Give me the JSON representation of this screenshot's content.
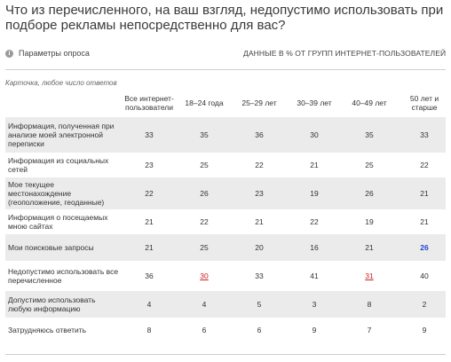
{
  "title": "Что из перечисленного, на ваш взгляд, недопустимо использовать при подборе рекламы непосредственно для вас?",
  "params_label": "Параметры опроса",
  "units_label": "ДАННЫЕ В % ОТ ГРУПП ИНТЕРНЕТ-ПОЛЬЗОВАТЕЛЕЙ",
  "caption": "Карточка, любое число ответов",
  "colors": {
    "highlight_red": "#cc2222",
    "highlight_blue": "#2244cc",
    "row_shade": "#ebebeb"
  },
  "chart_data": {
    "type": "table",
    "columns": [
      "Все интернет-пользователи",
      "18–24 года",
      "25–29 лет",
      "30–39 лет",
      "40–49 лет",
      "50 лет и старше"
    ],
    "rows": [
      {
        "label": "Информация, полученная при анализе моей электронной переписки",
        "values": [
          33,
          35,
          36,
          30,
          35,
          33
        ],
        "shaded": true
      },
      {
        "label": "Информация из социальных сетей",
        "values": [
          23,
          25,
          22,
          21,
          25,
          22
        ],
        "shaded": false
      },
      {
        "label": "Мое текущее местонахождение (геоположение, геоданные)",
        "values": [
          22,
          26,
          23,
          19,
          26,
          21
        ],
        "shaded": true
      },
      {
        "label": "Информация о посещаемых мною сайтах",
        "values": [
          21,
          22,
          21,
          22,
          19,
          21
        ],
        "shaded": false
      },
      {
        "label": "Мои поисковые запросы",
        "values": [
          21,
          25,
          20,
          16,
          21,
          26
        ],
        "shaded": true,
        "highlights": {
          "5": "blue"
        }
      },
      {
        "label": "Недопустимо использовать все перечисленное",
        "values": [
          36,
          30,
          33,
          41,
          31,
          40
        ],
        "shaded": false,
        "highlights": {
          "1": "red",
          "4": "red"
        }
      },
      {
        "label": "Допустимо использовать любую информацию",
        "values": [
          4,
          4,
          5,
          3,
          8,
          2
        ],
        "shaded": true
      },
      {
        "label": "Затрудняюсь ответить",
        "values": [
          8,
          6,
          6,
          9,
          7,
          9
        ],
        "shaded": false
      }
    ]
  }
}
